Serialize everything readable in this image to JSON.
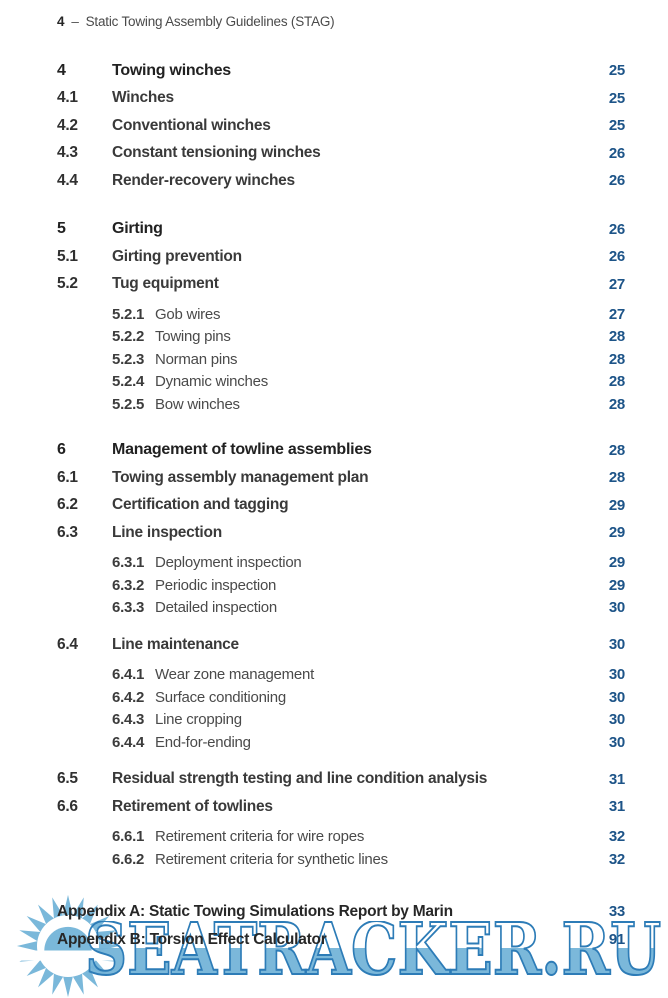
{
  "header": {
    "page_number": "4",
    "separator": "–",
    "doc_title": "Static Towing Assembly Guidelines (STAG)"
  },
  "toc": {
    "entries": [
      {
        "level": "l1",
        "number": "4",
        "title": "Towing winches",
        "page": "25",
        "gap": ""
      },
      {
        "level": "l2",
        "number": "4.1",
        "title": "Winches",
        "page": "25",
        "gap": ""
      },
      {
        "level": "l2",
        "number": "4.2",
        "title": "Conventional winches",
        "page": "25",
        "gap": ""
      },
      {
        "level": "l2",
        "number": "4.3",
        "title": "Constant tensioning winches",
        "page": "26",
        "gap": ""
      },
      {
        "level": "l2",
        "number": "4.4",
        "title": "Render-recovery winches",
        "page": "26",
        "gap": ""
      },
      {
        "level": "l1",
        "number": "5",
        "title": "Girting",
        "page": "26",
        "gap": "lg"
      },
      {
        "level": "l2",
        "number": "5.1",
        "title": "Girting prevention",
        "page": "26",
        "gap": ""
      },
      {
        "level": "l2",
        "number": "5.2",
        "title": "Tug equipment",
        "page": "27",
        "gap": ""
      },
      {
        "level": "l3",
        "number": "5.2.1",
        "title": "Gob wires",
        "page": "27",
        "gap": "sm"
      },
      {
        "level": "l3",
        "number": "5.2.2",
        "title": "Towing pins",
        "page": "28",
        "gap": ""
      },
      {
        "level": "l3",
        "number": "5.2.3",
        "title": "Norman pins",
        "page": "28",
        "gap": ""
      },
      {
        "level": "l3",
        "number": "5.2.4",
        "title": "Dynamic winches",
        "page": "28",
        "gap": ""
      },
      {
        "level": "l3",
        "number": "5.2.5",
        "title": "Bow winches",
        "page": "28",
        "gap": ""
      },
      {
        "level": "l1",
        "number": "6",
        "title": "Management of towline assemblies",
        "page": "28",
        "gap": "lg"
      },
      {
        "level": "l2",
        "number": "6.1",
        "title": "Towing assembly management plan",
        "page": "28",
        "gap": ""
      },
      {
        "level": "l2",
        "number": "6.2",
        "title": "Certification and tagging",
        "page": "29",
        "gap": ""
      },
      {
        "level": "l2",
        "number": "6.3",
        "title": "Line inspection",
        "page": "29",
        "gap": ""
      },
      {
        "level": "l3",
        "number": "6.3.1",
        "title": "Deployment inspection",
        "page": "29",
        "gap": "sm"
      },
      {
        "level": "l3",
        "number": "6.3.2",
        "title": "Periodic inspection",
        "page": "29",
        "gap": ""
      },
      {
        "level": "l3",
        "number": "6.3.3",
        "title": "Detailed inspection",
        "page": "30",
        "gap": ""
      },
      {
        "level": "l2",
        "number": "6.4",
        "title": "Line maintenance",
        "page": "30",
        "gap": "md"
      },
      {
        "level": "l3",
        "number": "6.4.1",
        "title": "Wear zone management",
        "page": "30",
        "gap": "sm"
      },
      {
        "level": "l3",
        "number": "6.4.2",
        "title": "Surface conditioning",
        "page": "30",
        "gap": ""
      },
      {
        "level": "l3",
        "number": "6.4.3",
        "title": "Line cropping",
        "page": "30",
        "gap": ""
      },
      {
        "level": "l3",
        "number": "6.4.4",
        "title": "End-for-ending",
        "page": "30",
        "gap": ""
      },
      {
        "level": "l2",
        "number": "6.5",
        "title": "Residual strength testing and line condition analysis",
        "page": "31",
        "gap": "md"
      },
      {
        "level": "l2",
        "number": "6.6",
        "title": "Retirement of towlines",
        "page": "31",
        "gap": ""
      },
      {
        "level": "l3",
        "number": "6.6.1",
        "title": "Retirement criteria for wire ropes",
        "page": "32",
        "gap": "sm"
      },
      {
        "level": "l3",
        "number": "6.6.2",
        "title": "Retirement criteria for synthetic lines",
        "page": "32",
        "gap": ""
      },
      {
        "level": "appendix",
        "number": "",
        "title": "Appendix A: Static Towing Simulations Report by Marin",
        "page": "33",
        "gap": "xl"
      },
      {
        "level": "appendix",
        "number": "",
        "title": "Appendix B: Torsion Effect Calculator",
        "page": "91",
        "gap": ""
      }
    ]
  },
  "watermark": {
    "text": "SEATRACKER.RU",
    "icon": "sun-rays-icon"
  },
  "colors": {
    "page_number_blue": "#1d5488",
    "body_text_dark": "#2a2a2a",
    "watermark_fill_blue": "#74b4d8",
    "watermark_outline_blue": "#2d7cb7",
    "watermark_sun_blue": "#7ab8da"
  }
}
